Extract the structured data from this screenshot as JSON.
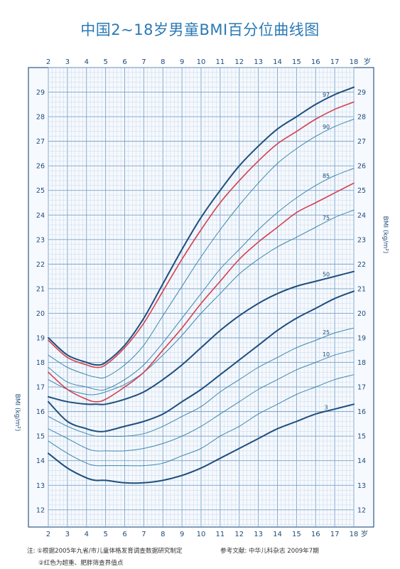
{
  "chart_data": {
    "type": "line",
    "title": "中国2~18岁男童BMI百分位曲线图",
    "xlabel": "岁",
    "ylabel": "BMI (kg/m²)",
    "xlim": [
      2,
      18
    ],
    "ylim": [
      11.3,
      30
    ],
    "x_ticks": [
      2,
      3,
      4,
      5,
      6,
      7,
      8,
      9,
      10,
      11,
      12,
      13,
      14,
      15,
      16,
      17,
      18
    ],
    "y_ticks": [
      12,
      13,
      14,
      15,
      16,
      17,
      18,
      19,
      20,
      21,
      22,
      23,
      24,
      25,
      26,
      27,
      28,
      29
    ],
    "grid": true,
    "x": [
      2,
      3,
      4,
      4.5,
      5,
      6,
      7,
      8,
      9,
      10,
      11,
      12,
      13,
      14,
      15,
      16,
      17,
      18
    ],
    "series": [
      {
        "name": "3",
        "style": "thick-blue",
        "values": [
          14.3,
          13.7,
          13.3,
          13.2,
          13.2,
          13.1,
          13.1,
          13.2,
          13.4,
          13.7,
          14.1,
          14.5,
          14.9,
          15.3,
          15.6,
          15.9,
          16.1,
          16.3
        ]
      },
      {
        "name": "",
        "style": "thin-blue",
        "values": [
          14.8,
          14.3,
          13.9,
          13.8,
          13.8,
          13.8,
          13.8,
          13.9,
          14.2,
          14.5,
          15.0,
          15.4,
          15.9,
          16.3,
          16.7,
          17.0,
          17.3,
          17.5
        ]
      },
      {
        "name": "10",
        "style": "thin-blue",
        "values": [
          15.3,
          14.9,
          14.5,
          14.4,
          14.4,
          14.4,
          14.5,
          14.7,
          15.0,
          15.4,
          15.9,
          16.4,
          16.9,
          17.3,
          17.7,
          18.0,
          18.3,
          18.5
        ]
      },
      {
        "name": "",
        "style": "thick-blue",
        "values": [
          16.4,
          15.6,
          15.3,
          15.2,
          15.2,
          15.4,
          15.6,
          15.9,
          16.4,
          16.9,
          17.5,
          18.1,
          18.7,
          19.3,
          19.8,
          20.2,
          20.6,
          20.9
        ]
      },
      {
        "name": "25",
        "style": "thin-blue",
        "values": [
          15.8,
          15.4,
          15.1,
          15.0,
          15.0,
          15.0,
          15.1,
          15.4,
          15.8,
          16.2,
          16.8,
          17.3,
          17.8,
          18.2,
          18.6,
          18.9,
          19.2,
          19.4
        ]
      },
      {
        "name": "50",
        "style": "thick-blue",
        "values": [
          16.6,
          16.4,
          16.3,
          16.3,
          16.3,
          16.5,
          16.8,
          17.3,
          17.9,
          18.6,
          19.3,
          19.9,
          20.4,
          20.8,
          21.1,
          21.3,
          21.5,
          21.7
        ]
      },
      {
        "name": "75",
        "style": "thin-blue",
        "values": [
          17.3,
          16.9,
          16.7,
          16.7,
          16.8,
          17.1,
          17.6,
          18.3,
          19.1,
          20.0,
          20.8,
          21.6,
          22.2,
          22.7,
          23.1,
          23.5,
          23.9,
          24.2
        ]
      },
      {
        "name": "",
        "style": "red",
        "values": [
          17.6,
          16.9,
          16.5,
          16.4,
          16.5,
          17.0,
          17.6,
          18.5,
          19.4,
          20.4,
          21.3,
          22.2,
          22.9,
          23.5,
          24.1,
          24.5,
          24.9,
          25.3
        ]
      },
      {
        "name": "85",
        "style": "thin-blue",
        "values": [
          17.8,
          17.2,
          17.0,
          16.9,
          16.9,
          17.3,
          17.9,
          18.8,
          19.8,
          20.8,
          21.8,
          22.6,
          23.4,
          24.1,
          24.7,
          25.2,
          25.6,
          25.9
        ]
      },
      {
        "name": "90",
        "style": "thin-blue",
        "values": [
          18.3,
          17.8,
          17.5,
          17.4,
          17.4,
          17.9,
          18.7,
          19.9,
          21.1,
          22.3,
          23.4,
          24.4,
          25.3,
          26.1,
          26.7,
          27.2,
          27.6,
          27.9
        ]
      },
      {
        "name": "",
        "style": "red",
        "values": [
          18.9,
          18.2,
          17.9,
          17.8,
          17.9,
          18.6,
          19.6,
          20.9,
          22.2,
          23.4,
          24.5,
          25.4,
          26.2,
          26.9,
          27.4,
          27.9,
          28.3,
          28.6
        ]
      },
      {
        "name": "97",
        "style": "thick-blue",
        "values": [
          19.0,
          18.3,
          18.0,
          17.9,
          18.0,
          18.7,
          19.8,
          21.2,
          22.6,
          23.9,
          25.0,
          26.0,
          26.8,
          27.5,
          28.0,
          28.5,
          28.9,
          29.2
        ]
      }
    ],
    "notes": [
      "注: ①根据2005年九省/市儿童体格发育调查数据研究制定",
      "②红色为超重、肥胖筛查界值点"
    ],
    "reference": "参考文献: 中华儿科杂志  2009年7期"
  }
}
